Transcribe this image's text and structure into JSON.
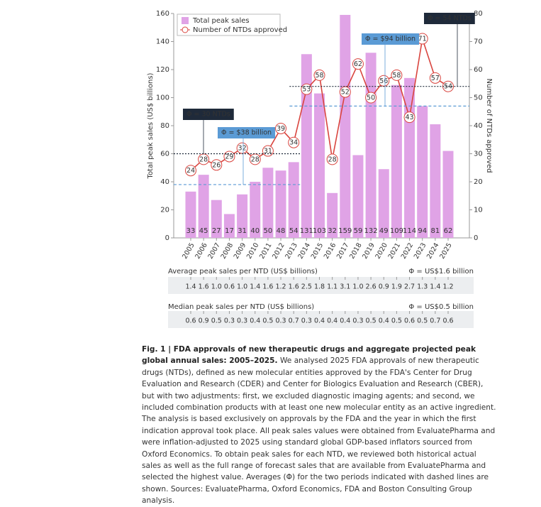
{
  "chart_data": {
    "type": "bar-line",
    "categories": [
      "2005",
      "2006",
      "2007",
      "2008",
      "2009",
      "2010",
      "2011",
      "2012",
      "2013",
      "2014",
      "2015",
      "2016",
      "2017",
      "2018",
      "2019",
      "2020",
      "2021",
      "2022",
      "2023",
      "2024",
      "2025"
    ],
    "series": [
      {
        "name": "Total peak sales",
        "type": "bar",
        "color": "#e0a3e6",
        "values": [
          33,
          45,
          27,
          17,
          31,
          40,
          50,
          48,
          54,
          131,
          103,
          32,
          159,
          59,
          132,
          49,
          109,
          114,
          94,
          81,
          62
        ]
      },
      {
        "name": "Number of NTDs approved",
        "type": "line",
        "axis": "y2",
        "color": "#d9453f",
        "values": [
          24,
          28,
          26,
          29,
          32,
          28,
          31,
          39,
          34,
          53,
          58,
          28,
          52,
          62,
          50,
          56,
          58,
          43,
          71,
          57,
          54
        ]
      }
    ],
    "ylabel": "Total peak sales (US$ billions)",
    "y2label": "Number of NTDs approved",
    "ylim": [
      0,
      160
    ],
    "yticks": [
      0,
      20,
      40,
      60,
      80,
      100,
      120,
      140,
      160
    ],
    "y2lim": [
      0,
      80
    ],
    "y2ticks": [
      0,
      10,
      20,
      30,
      40,
      50,
      60,
      70,
      80
    ],
    "legend": "top-left",
    "averages": [
      {
        "text": "Φ = 30 NTDs",
        "value": 30,
        "axis": "y2",
        "from": "2005",
        "to": "2013",
        "color": "#1f2a3a"
      },
      {
        "text": "Φ = $38 billion",
        "value": 38,
        "axis": "y",
        "from": "2005",
        "to": "2013",
        "color": "#5b9bd5"
      },
      {
        "text": "Φ = $94 billion",
        "value": 94,
        "axis": "y",
        "from": "2014",
        "to": "2025",
        "color": "#5b9bd5"
      },
      {
        "text": "Φ = 54 NTDs",
        "value": 54,
        "axis": "y2",
        "from": "2014",
        "to": "2025",
        "color": "#1f2a3a"
      }
    ]
  },
  "tables": [
    {
      "title": "Average peak sales per NTD (US$ billions)",
      "average": "Φ = US$1.6 billion",
      "values": [
        "1.4",
        "1.6",
        "1.0",
        "0.6",
        "1.0",
        "1.4",
        "1.6",
        "1.2",
        "1.6",
        "2.5",
        "1.8",
        "1.1",
        "3.1",
        "1.0",
        "2.6",
        "0.9",
        "1.9",
        "2.7",
        "1.3",
        "1.4",
        "1.2"
      ]
    },
    {
      "title": "Median peak sales per NTD (US$ billions)",
      "average": "Φ = US$0.5 billion",
      "values": [
        "0.6",
        "0.9",
        "0.5",
        "0.3",
        "0.3",
        "0.4",
        "0.5",
        "0.3",
        "0.7",
        "0.3",
        "0.4",
        "0.4",
        "0.4",
        "0.3",
        "0.5",
        "0.4",
        "0.5",
        "0.6",
        "0.5",
        "0.7",
        "0.6"
      ]
    }
  ],
  "caption": {
    "title": "Fig. 1 | FDA approvals of new therapeutic drugs and aggregate projected peak global annual sales: 2005–2025.",
    "text": "We analysed 2025 FDA approvals of new therapeutic drugs (NTDs), defined as new molecular entities approved by the FDA's Center for Drug Evaluation and Research (CDER) and Center for Biologics Evaluation and Research (CBER), but with two adjustments: first, we excluded diagnostic imaging agents; and second, we included combination products with at least one new molecular entity as an active ingredient. The analysis is based exclusively on approvals by the FDA and the year in which the first indication approval took place. All peak sales values were obtained from EvaluatePharma and were inflation-adjusted to 2025 using standard global GDP-based inflators sourced from Oxford Economics. To obtain peak sales for each NTD, we reviewed both historical actual sales as well as the full range of forecast sales that are available from EvaluatePharma and selected the highest value. Averages (Φ) for the two periods indicated with dashed lines are shown. Sources: EvaluatePharma, Oxford Economics, FDA and Boston Consulting Group analysis."
  }
}
